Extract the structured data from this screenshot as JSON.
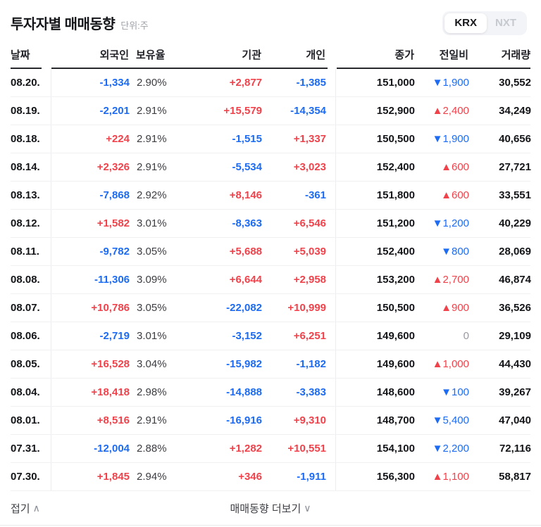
{
  "header": {
    "title": "투자자별 매매동향",
    "unit": "단위:주",
    "exchange_toggle": {
      "krx": "KRX",
      "nxt": "NXT",
      "selected": "KRX"
    }
  },
  "table": {
    "headers": {
      "date": "날짜",
      "foreign": "외국인",
      "ratio": "보유율",
      "institution": "기관",
      "individual": "개인",
      "close": "종가",
      "change": "전일비",
      "volume": "거래량"
    },
    "rows": [
      {
        "date": "08.20.",
        "foreign": "-1,334",
        "ratio": "2.90%",
        "institution": "+2,877",
        "individual": "-1,385",
        "close": "151,000",
        "change": "▼1,900",
        "volume": "30,552"
      },
      {
        "date": "08.19.",
        "foreign": "-2,201",
        "ratio": "2.91%",
        "institution": "+15,579",
        "individual": "-14,354",
        "close": "152,900",
        "change": "▲2,400",
        "volume": "34,249"
      },
      {
        "date": "08.18.",
        "foreign": "+224",
        "ratio": "2.91%",
        "institution": "-1,515",
        "individual": "+1,337",
        "close": "150,500",
        "change": "▼1,900",
        "volume": "40,656"
      },
      {
        "date": "08.14.",
        "foreign": "+2,326",
        "ratio": "2.91%",
        "institution": "-5,534",
        "individual": "+3,023",
        "close": "152,400",
        "change": "▲600",
        "volume": "27,721"
      },
      {
        "date": "08.13.",
        "foreign": "-7,868",
        "ratio": "2.92%",
        "institution": "+8,146",
        "individual": "-361",
        "close": "151,800",
        "change": "▲600",
        "volume": "33,551"
      },
      {
        "date": "08.12.",
        "foreign": "+1,582",
        "ratio": "3.01%",
        "institution": "-8,363",
        "individual": "+6,546",
        "close": "151,200",
        "change": "▼1,200",
        "volume": "40,229"
      },
      {
        "date": "08.11.",
        "foreign": "-9,782",
        "ratio": "3.05%",
        "institution": "+5,688",
        "individual": "+5,039",
        "close": "152,400",
        "change": "▼800",
        "volume": "28,069"
      },
      {
        "date": "08.08.",
        "foreign": "-11,306",
        "ratio": "3.09%",
        "institution": "+6,644",
        "individual": "+2,958",
        "close": "153,200",
        "change": "▲2,700",
        "volume": "46,874"
      },
      {
        "date": "08.07.",
        "foreign": "+10,786",
        "ratio": "3.05%",
        "institution": "-22,082",
        "individual": "+10,999",
        "close": "150,500",
        "change": "▲900",
        "volume": "36,526"
      },
      {
        "date": "08.06.",
        "foreign": "-2,719",
        "ratio": "3.01%",
        "institution": "-3,152",
        "individual": "+6,251",
        "close": "149,600",
        "change": "0",
        "volume": "29,109"
      },
      {
        "date": "08.05.",
        "foreign": "+16,528",
        "ratio": "3.04%",
        "institution": "-15,982",
        "individual": "-1,182",
        "close": "149,600",
        "change": "▲1,000",
        "volume": "44,430"
      },
      {
        "date": "08.04.",
        "foreign": "+18,418",
        "ratio": "2.98%",
        "institution": "-14,888",
        "individual": "-3,383",
        "close": "148,600",
        "change": "▼100",
        "volume": "39,267"
      },
      {
        "date": "08.01.",
        "foreign": "+8,516",
        "ratio": "2.91%",
        "institution": "-16,916",
        "individual": "+9,310",
        "close": "148,700",
        "change": "▼5,400",
        "volume": "47,040"
      },
      {
        "date": "07.31.",
        "foreign": "-12,004",
        "ratio": "2.88%",
        "institution": "+1,282",
        "individual": "+10,551",
        "close": "154,100",
        "change": "▼2,200",
        "volume": "72,116"
      },
      {
        "date": "07.30.",
        "foreign": "+1,845",
        "ratio": "2.94%",
        "institution": "+346",
        "individual": "-1,911",
        "close": "156,300",
        "change": "▲1,100",
        "volume": "58,817"
      }
    ]
  },
  "footer": {
    "collapse": "접기",
    "collapse_icon": "∧",
    "more": "매매동향 더보기",
    "more_icon": "∨"
  },
  "colors": {
    "up_red": "#f0424b",
    "down_blue": "#1c6bf2",
    "flat_gray": "#999aa0"
  }
}
